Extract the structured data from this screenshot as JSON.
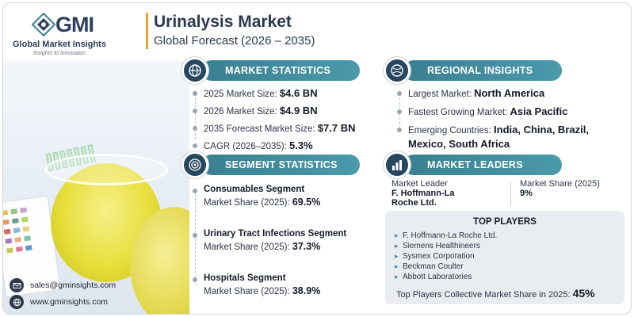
{
  "brand": {
    "logo_text": "GMI",
    "name": "Global Market Insights",
    "tagline": "Insights to Innovation"
  },
  "header": {
    "title": "Urinalysis Market",
    "subtitle": "Global Forecast (2026 – 2035)"
  },
  "market_statistics": {
    "heading": "MARKET STATISTICS",
    "rows": [
      {
        "label": "2025 Market Size: ",
        "value": "$4.6 BN"
      },
      {
        "label": "2026 Market Size: ",
        "value": "$4.9 BN"
      },
      {
        "label": "2035 Forecast Market Size: ",
        "value": "$7.7 BN"
      },
      {
        "label": "CAGR (2026–2035): ",
        "value": "5.3%"
      }
    ]
  },
  "regional_insights": {
    "heading": "REGIONAL INSIGHTS",
    "rows": [
      {
        "label": "Largest Market: ",
        "value": "North America"
      },
      {
        "label": "Fastest Growing Market: ",
        "value": "Asia Pacific"
      },
      {
        "label": "Emerging Countries: ",
        "value": "India, China, Brazil,",
        "value2": "Mexico, South Africa"
      }
    ]
  },
  "segment_statistics": {
    "heading": "SEGMENT STATISTICS",
    "items": [
      {
        "title": "Consumables Segment",
        "share_label": "Market Share (2025): ",
        "share": "69.5%"
      },
      {
        "title": "Urinary Tract Infections Segment",
        "share_label": "Market Share (2025): ",
        "share": "37.3%"
      },
      {
        "title": "Hospitals Segment",
        "share_label": "Market Share (2025): ",
        "share": "38.9%"
      }
    ]
  },
  "market_leaders": {
    "heading": "MARKET LEADERS",
    "leader_label": "Market Leader",
    "leader_name_1": "F. Hoffmann-La",
    "leader_name_2": "Roche Ltd.",
    "share_label": "Market Share (2025)",
    "share_value": "9%"
  },
  "top_players": {
    "heading": "TOP PLAYERS",
    "players": [
      "F. Hoffmann-La Roche Ltd.",
      "Siemens Healthineers",
      "Sysmex Corporation",
      "Beckman Coulter",
      "Abbott Laboratories"
    ],
    "collective_label": "Top Players Collective Market Share in 2025: ",
    "collective_value": "45%"
  },
  "contact": {
    "email": "sales@gminsights.com",
    "website": "www.gminsights.com"
  },
  "colors": {
    "pill": "#3a7f92",
    "icon_circle": "#26475f",
    "accent": "#f0a030",
    "brand_text": "#2c3e5b"
  }
}
